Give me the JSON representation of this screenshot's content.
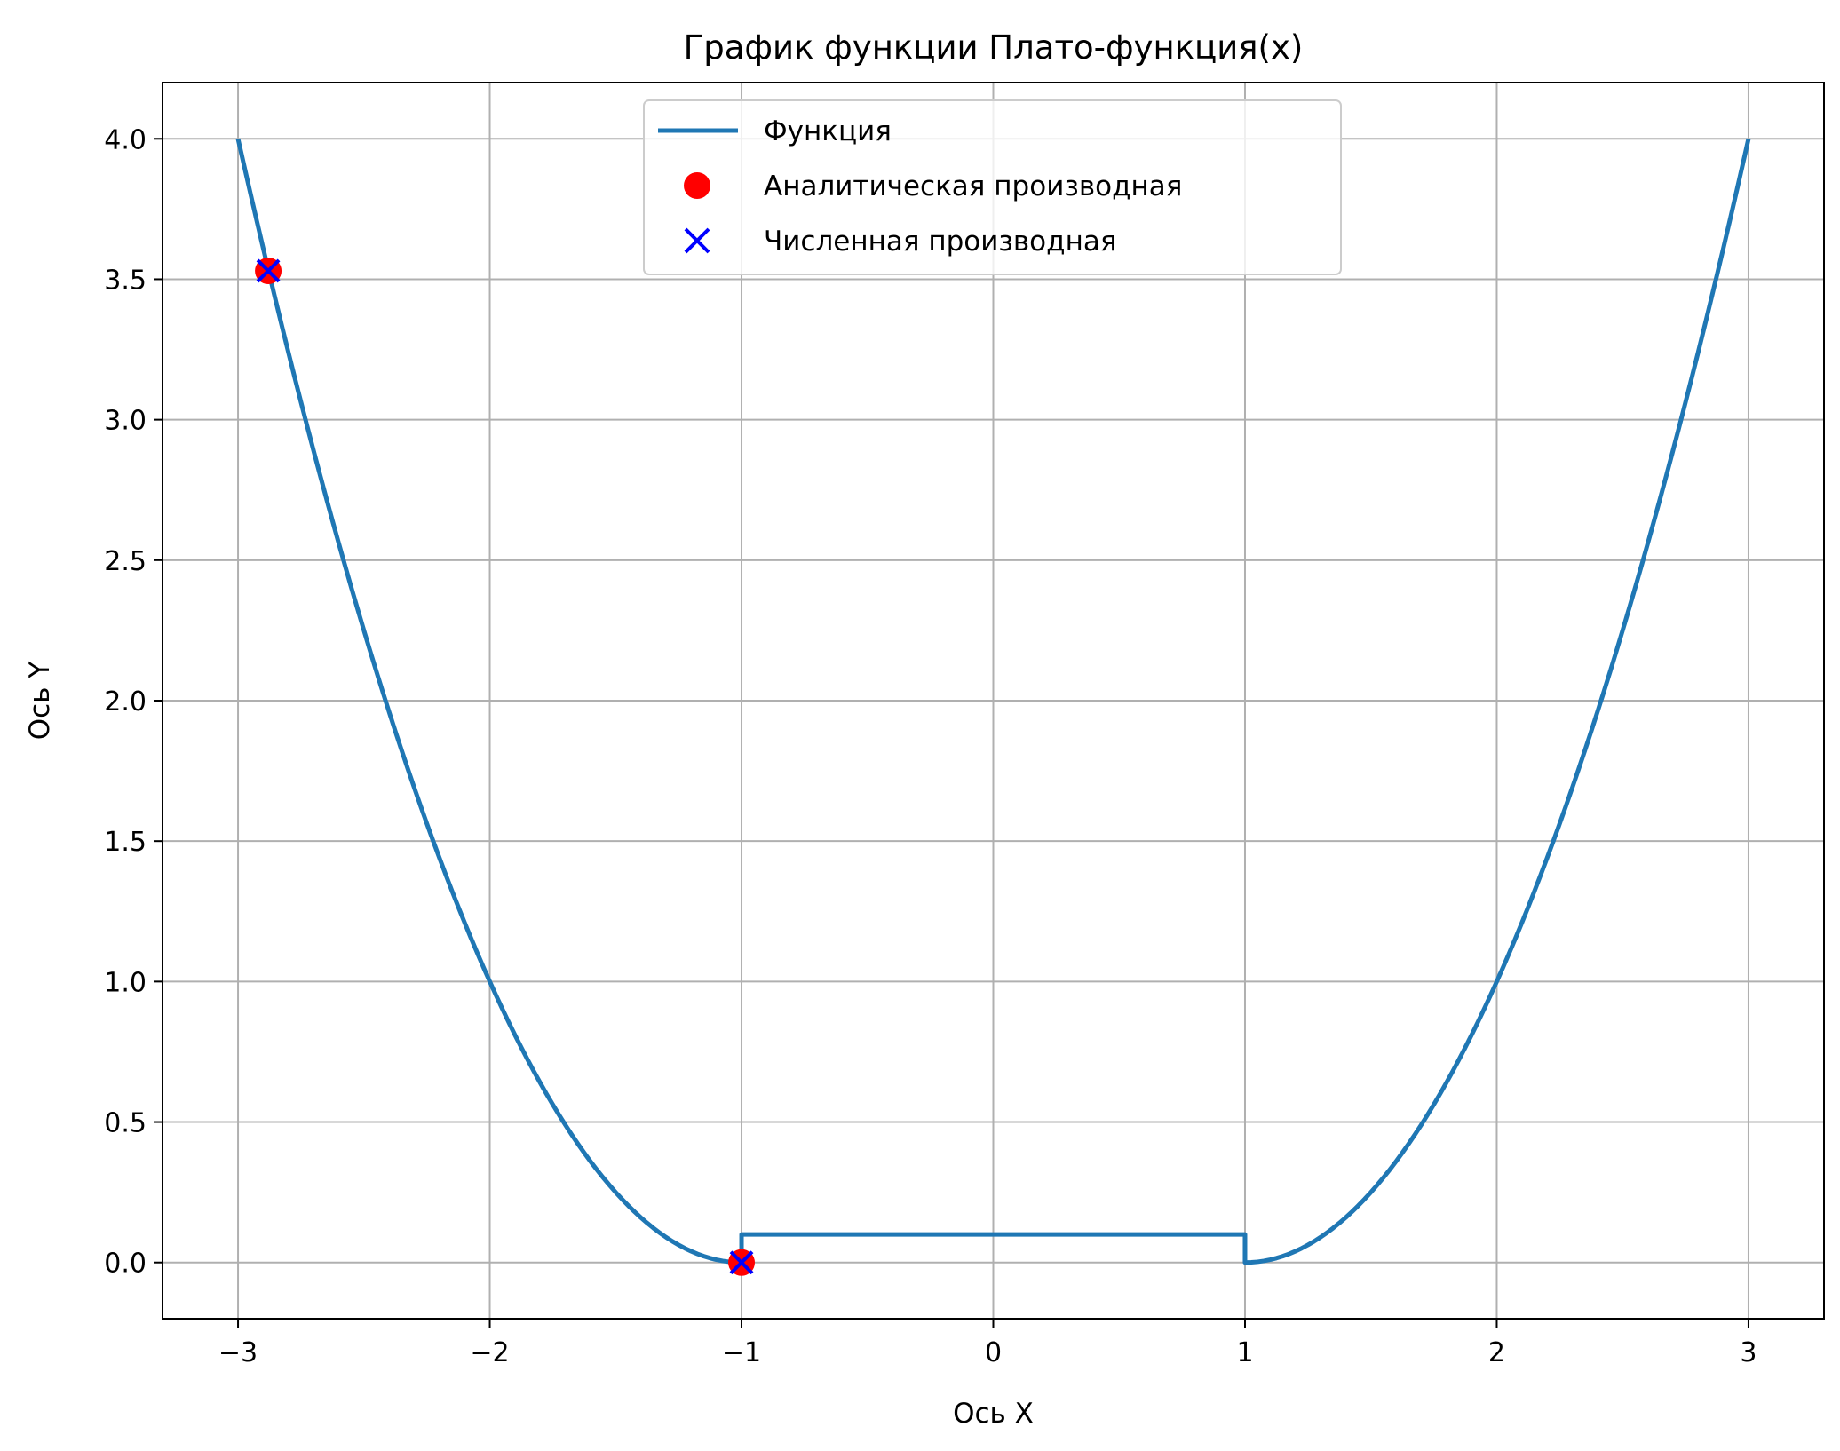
{
  "chart_data": {
    "type": "line",
    "title": "График функции Плато-функция(x)",
    "xlabel": "Ось X",
    "ylabel": "Ось Y",
    "xlim": [
      -3.3,
      3.3
    ],
    "ylim": [
      -0.2,
      4.2
    ],
    "xticks": [
      -3,
      -2,
      -1,
      0,
      1,
      2,
      3
    ],
    "xtick_labels": [
      "−3",
      "−2",
      "−1",
      "0",
      "1",
      "2",
      "3"
    ],
    "yticks": [
      0.0,
      0.5,
      1.0,
      1.5,
      2.0,
      2.5,
      3.0,
      3.5,
      4.0
    ],
    "ytick_labels": [
      "0.0",
      "0.5",
      "1.0",
      "1.5",
      "2.0",
      "2.5",
      "3.0",
      "3.5",
      "4.0"
    ],
    "grid": true,
    "legend": {
      "placement": "upper center"
    },
    "series": [
      {
        "name": "Функция",
        "kind": "line",
        "color": "#1f77b4",
        "x": [
          -3.0,
          -2.75,
          -2.5,
          -2.25,
          -2.0,
          -1.75,
          -1.5,
          -1.25,
          -1.0,
          -1.0,
          -0.5,
          0.0,
          0.5,
          1.0,
          1.0,
          1.25,
          1.5,
          1.75,
          2.0,
          2.25,
          2.5,
          2.75,
          3.0
        ],
        "y": [
          4.0,
          3.0625,
          2.25,
          1.5625,
          1.0,
          0.5625,
          0.25,
          0.0625,
          0.0,
          0.1,
          0.1,
          0.1,
          0.1,
          0.1,
          0.0,
          0.0625,
          0.25,
          0.5625,
          1.0,
          1.5625,
          2.25,
          3.0625,
          4.0
        ]
      },
      {
        "name": "Аналитическая производная",
        "kind": "scatter",
        "marker": "circle",
        "color": "#ff0000",
        "x": [
          -2.88,
          -1.0
        ],
        "y": [
          3.53,
          0.0
        ]
      },
      {
        "name": "Численная производная",
        "kind": "scatter",
        "marker": "x",
        "color": "#0000ff",
        "x": [
          -2.88,
          -1.0
        ],
        "y": [
          3.53,
          0.0
        ]
      }
    ]
  }
}
